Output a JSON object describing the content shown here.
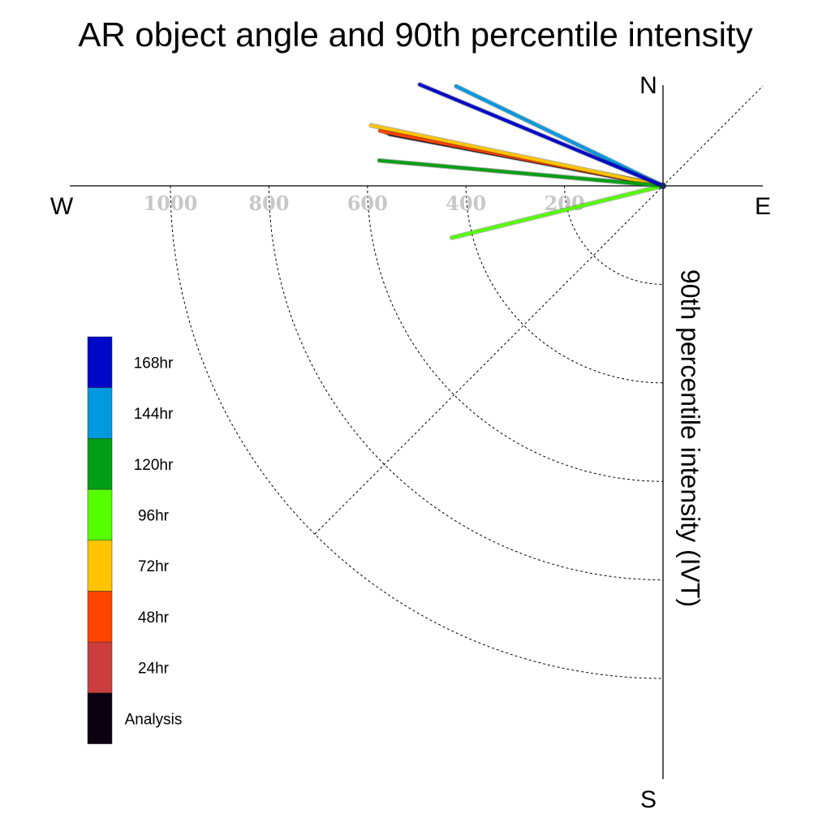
{
  "chart_data": {
    "type": "polar-vector",
    "title": "AR object angle and 90th percentile intensity",
    "ylabel": "90th percentile intensity (IVT)",
    "compass": {
      "north": "N",
      "south": "S",
      "east": "E",
      "west": "W"
    },
    "radial_ticks": [
      {
        "value": 200,
        "label": "200"
      },
      {
        "value": 400,
        "label": "400"
      },
      {
        "value": 600,
        "label": "600"
      },
      {
        "value": 800,
        "label": "800"
      },
      {
        "value": 1000,
        "label": "1000"
      }
    ],
    "radial_range": [
      0,
      1100
    ],
    "grid": true,
    "legend_position": "lower-left",
    "series": [
      {
        "name": "Analysis",
        "color": "#0a0010",
        "angle_deg": 169.3,
        "intensity": 565
      },
      {
        "name": "24hr",
        "color": "#cc3d3d",
        "angle_deg": 169.1,
        "intensity": 572
      },
      {
        "name": "48hr",
        "color": "#ff4400",
        "angle_deg": 169.0,
        "intensity": 585
      },
      {
        "name": "72hr",
        "color": "#ffc400",
        "angle_deg": 168.3,
        "intensity": 605
      },
      {
        "name": "96hr",
        "color": "#55ff00",
        "angle_deg": 193.8,
        "intensity": 441
      },
      {
        "name": "120hr",
        "color": "#009e14",
        "angle_deg": 174.9,
        "intensity": 578
      },
      {
        "name": "144hr",
        "color": "#0099df",
        "angle_deg": 154.3,
        "intensity": 466
      },
      {
        "name": "168hr",
        "color": "#0008c8",
        "angle_deg": 157.4,
        "intensity": 535
      }
    ]
  }
}
